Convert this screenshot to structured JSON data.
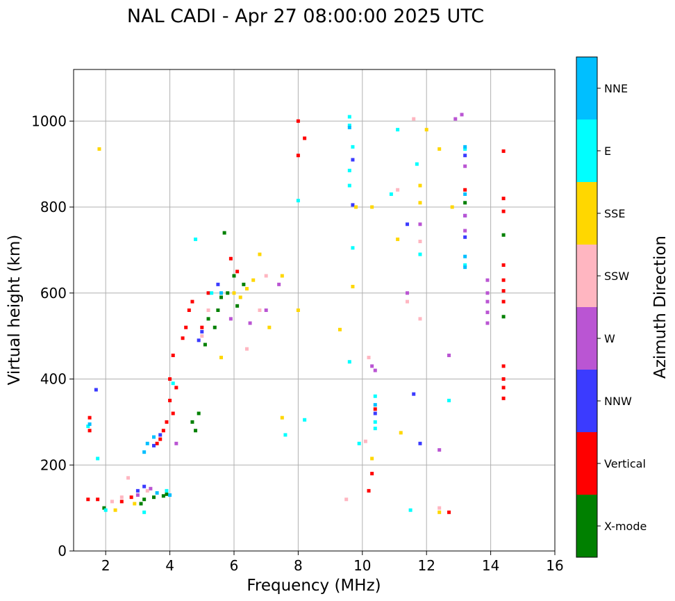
{
  "chart_data": {
    "type": "scatter",
    "title": "NAL CADI - Apr 27 08:00:00 2025 UTC",
    "xlabel": "Frequency (MHz)",
    "ylabel": "Virtual height (km)",
    "xlim": [
      1,
      16
    ],
    "ylim": [
      0,
      1120
    ],
    "xticks": [
      2,
      4,
      6,
      8,
      10,
      12,
      14,
      16
    ],
    "yticks": [
      0,
      200,
      400,
      600,
      800,
      1000
    ],
    "grid": true,
    "colorbar": {
      "label": "Azimuth Direction",
      "categories": [
        {
          "name": "X-mode",
          "color": "#008000"
        },
        {
          "name": "Vertical",
          "color": "#ff0000"
        },
        {
          "name": "NNW",
          "color": "#3b3bff"
        },
        {
          "name": "W",
          "color": "#ba55d3"
        },
        {
          "name": "SSW",
          "color": "#ffb6c1"
        },
        {
          "name": "SSE",
          "color": "#ffd700"
        },
        {
          "name": "E",
          "color": "#00ffff"
        },
        {
          "name": "NNE",
          "color": "#00bfff"
        }
      ]
    },
    "series": [
      {
        "name": "X-mode",
        "points": [
          [
            1.95,
            100
          ],
          [
            3.2,
            120
          ],
          [
            3.5,
            125
          ],
          [
            3.8,
            128
          ],
          [
            3.9,
            132
          ],
          [
            4.7,
            300
          ],
          [
            4.9,
            320
          ],
          [
            5.2,
            540
          ],
          [
            5.5,
            560
          ],
          [
            5.6,
            590
          ],
          [
            5.8,
            600
          ],
          [
            6.0,
            640
          ],
          [
            6.3,
            620
          ],
          [
            5.1,
            480
          ],
          [
            4.8,
            280
          ],
          [
            5.7,
            740
          ],
          [
            13.2,
            810
          ],
          [
            14.4,
            735
          ],
          [
            14.4,
            545
          ],
          [
            3.1,
            110
          ],
          [
            5.4,
            520
          ],
          [
            6.1,
            570
          ]
        ]
      },
      {
        "name": "Vertical",
        "points": [
          [
            1.45,
            120
          ],
          [
            1.5,
            310
          ],
          [
            1.5,
            280
          ],
          [
            1.75,
            120
          ],
          [
            2.5,
            115
          ],
          [
            2.8,
            125
          ],
          [
            3.6,
            250
          ],
          [
            3.8,
            280
          ],
          [
            3.9,
            300
          ],
          [
            4.0,
            350
          ],
          [
            4.0,
            400
          ],
          [
            4.1,
            320
          ],
          [
            4.2,
            380
          ],
          [
            3.7,
            260
          ],
          [
            4.1,
            455
          ],
          [
            4.4,
            495
          ],
          [
            4.5,
            520
          ],
          [
            4.6,
            560
          ],
          [
            4.7,
            580
          ],
          [
            5.0,
            520
          ],
          [
            5.2,
            600
          ],
          [
            5.9,
            680
          ],
          [
            6.1,
            650
          ],
          [
            8.0,
            1000
          ],
          [
            8.0,
            920
          ],
          [
            8.2,
            960
          ],
          [
            10.2,
            140
          ],
          [
            10.3,
            180
          ],
          [
            10.4,
            330
          ],
          [
            12.7,
            90
          ],
          [
            13.2,
            840
          ],
          [
            14.4,
            930
          ],
          [
            14.4,
            820
          ],
          [
            14.4,
            790
          ],
          [
            14.4,
            665
          ],
          [
            14.4,
            630
          ],
          [
            14.4,
            605
          ],
          [
            14.4,
            580
          ],
          [
            14.4,
            430
          ],
          [
            14.4,
            400
          ],
          [
            14.4,
            380
          ],
          [
            14.4,
            355
          ]
        ]
      },
      {
        "name": "NNW",
        "points": [
          [
            1.7,
            375
          ],
          [
            3.0,
            140
          ],
          [
            3.2,
            150
          ],
          [
            3.5,
            245
          ],
          [
            3.7,
            270
          ],
          [
            4.9,
            490
          ],
          [
            5.0,
            510
          ],
          [
            5.5,
            620
          ],
          [
            9.7,
            910
          ],
          [
            9.7,
            805
          ],
          [
            10.4,
            320
          ],
          [
            11.4,
            760
          ],
          [
            11.6,
            365
          ],
          [
            11.8,
            250
          ],
          [
            13.2,
            920
          ],
          [
            13.2,
            780
          ],
          [
            13.2,
            730
          ]
        ]
      },
      {
        "name": "W",
        "points": [
          [
            3.0,
            130
          ],
          [
            3.4,
            145
          ],
          [
            4.2,
            250
          ],
          [
            5.9,
            540
          ],
          [
            6.5,
            530
          ],
          [
            7.0,
            560
          ],
          [
            7.4,
            620
          ],
          [
            10.3,
            430
          ],
          [
            10.4,
            420
          ],
          [
            11.4,
            600
          ],
          [
            11.8,
            760
          ],
          [
            12.4,
            235
          ],
          [
            12.7,
            455
          ],
          [
            12.9,
            1005
          ],
          [
            13.1,
            1015
          ],
          [
            13.2,
            895
          ],
          [
            13.2,
            780
          ],
          [
            13.2,
            745
          ],
          [
            13.9,
            630
          ],
          [
            13.9,
            600
          ],
          [
            13.9,
            580
          ],
          [
            13.9,
            555
          ],
          [
            13.9,
            530
          ]
        ]
      },
      {
        "name": "SSW",
        "points": [
          [
            2.2,
            115
          ],
          [
            2.5,
            125
          ],
          [
            2.7,
            170
          ],
          [
            3.3,
            140
          ],
          [
            5.0,
            500
          ],
          [
            5.2,
            560
          ],
          [
            6.4,
            470
          ],
          [
            6.8,
            560
          ],
          [
            7.0,
            640
          ],
          [
            9.5,
            120
          ],
          [
            10.1,
            255
          ],
          [
            10.2,
            450
          ],
          [
            11.1,
            840
          ],
          [
            11.4,
            580
          ],
          [
            11.6,
            1005
          ],
          [
            11.8,
            720
          ],
          [
            11.8,
            540
          ],
          [
            12.4,
            100
          ]
        ]
      },
      {
        "name": "SSE",
        "points": [
          [
            1.8,
            935
          ],
          [
            2.3,
            95
          ],
          [
            2.9,
            110
          ],
          [
            5.6,
            450
          ],
          [
            6.0,
            600
          ],
          [
            6.2,
            590
          ],
          [
            6.4,
            610
          ],
          [
            6.6,
            630
          ],
          [
            6.8,
            690
          ],
          [
            7.1,
            520
          ],
          [
            7.5,
            640
          ],
          [
            7.5,
            310
          ],
          [
            8.0,
            560
          ],
          [
            9.3,
            515
          ],
          [
            9.7,
            615
          ],
          [
            9.8,
            800
          ],
          [
            10.3,
            800
          ],
          [
            10.3,
            215
          ],
          [
            11.1,
            725
          ],
          [
            11.2,
            275
          ],
          [
            11.8,
            850
          ],
          [
            11.8,
            810
          ],
          [
            12.0,
            980
          ],
          [
            12.4,
            935
          ],
          [
            12.4,
            90
          ],
          [
            12.8,
            800
          ]
        ]
      },
      {
        "name": "E",
        "points": [
          [
            1.45,
            290
          ],
          [
            1.75,
            215
          ],
          [
            2.0,
            95
          ],
          [
            3.2,
            90
          ],
          [
            3.9,
            140
          ],
          [
            4.1,
            390
          ],
          [
            4.8,
            725
          ],
          [
            5.3,
            600
          ],
          [
            7.6,
            270
          ],
          [
            8.0,
            815
          ],
          [
            8.2,
            305
          ],
          [
            9.6,
            1010
          ],
          [
            9.6,
            990
          ],
          [
            9.6,
            885
          ],
          [
            9.6,
            850
          ],
          [
            9.6,
            440
          ],
          [
            9.7,
            940
          ],
          [
            9.7,
            705
          ],
          [
            9.9,
            250
          ],
          [
            10.4,
            360
          ],
          [
            10.4,
            300
          ],
          [
            10.4,
            285
          ],
          [
            10.9,
            830
          ],
          [
            11.1,
            980
          ],
          [
            11.5,
            95
          ],
          [
            11.7,
            900
          ],
          [
            11.8,
            690
          ],
          [
            12.7,
            350
          ],
          [
            13.2,
            665
          ],
          [
            13.2,
            935
          ]
        ]
      },
      {
        "name": "NNE",
        "points": [
          [
            1.5,
            295
          ],
          [
            3.2,
            230
          ],
          [
            3.3,
            250
          ],
          [
            3.5,
            265
          ],
          [
            3.6,
            135
          ],
          [
            4.0,
            130
          ],
          [
            5.6,
            600
          ],
          [
            9.6,
            985
          ],
          [
            10.4,
            340
          ],
          [
            13.2,
            685
          ],
          [
            13.2,
            660
          ],
          [
            13.2,
            940
          ],
          [
            13.2,
            830
          ]
        ]
      }
    ]
  }
}
